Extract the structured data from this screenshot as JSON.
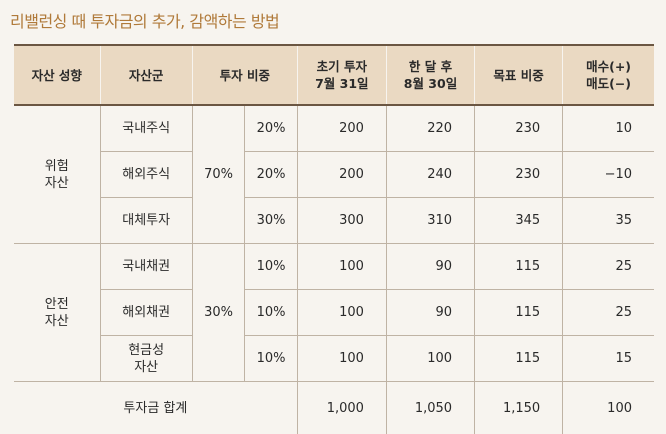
{
  "title": "리밸런싱 때 투자금의 추가, 감액하는 방법",
  "headers": {
    "category": "자산 성향",
    "asset": "자산군",
    "weight": "투자 비중",
    "initial": "초기 투자\n7월 31일",
    "after": "한 달 후\n8월 30일",
    "target": "목표 비중",
    "trade": "매수(+)\n매도(−)"
  },
  "groups": [
    {
      "category": "위험\n자산",
      "group_weight": "70%",
      "rows": [
        {
          "asset": "국내주식",
          "weight": "20%",
          "initial": "200",
          "after": "220",
          "target": "230",
          "trade": "10"
        },
        {
          "asset": "해외주식",
          "weight": "20%",
          "initial": "200",
          "after": "240",
          "target": "230",
          "trade": "−10"
        },
        {
          "asset": "대체투자",
          "weight": "30%",
          "initial": "300",
          "after": "310",
          "target": "345",
          "trade": "35"
        }
      ]
    },
    {
      "category": "안전\n자산",
      "group_weight": "30%",
      "rows": [
        {
          "asset": "국내채권",
          "weight": "10%",
          "initial": "100",
          "after": "90",
          "target": "115",
          "trade": "25"
        },
        {
          "asset": "해외채권",
          "weight": "10%",
          "initial": "100",
          "after": "90",
          "target": "115",
          "trade": "25"
        },
        {
          "asset": "현금성\n자산",
          "weight": "10%",
          "initial": "100",
          "after": "100",
          "target": "115",
          "trade": "15"
        }
      ]
    }
  ],
  "total": {
    "label": "투자금 합계",
    "initial": "1,000",
    "after": "1,050",
    "target": "1,150",
    "trade": "100"
  },
  "colors": {
    "title": "#b07a3a",
    "header_bg": "#ead9c2",
    "rule": "#6b5642"
  }
}
